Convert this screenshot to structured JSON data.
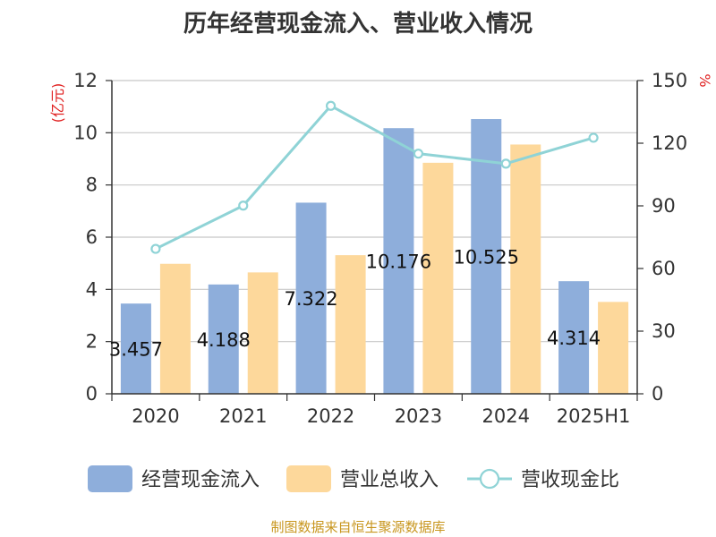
{
  "source": {
    "text": "制图数据来自恒生聚源数据库",
    "color": "#c8961e"
  },
  "chart_data": {
    "type": "bar",
    "title": "历年经营现金流入、营业收入情况",
    "categories": [
      "2020",
      "2021",
      "2022",
      "2023",
      "2024",
      "2025H1"
    ],
    "y_left": {
      "unit": "(亿元)",
      "min": 0,
      "max": 12,
      "ticks": [
        0,
        2,
        4,
        6,
        8,
        10,
        12
      ]
    },
    "y_right": {
      "unit": "%",
      "min": 0,
      "max": 150,
      "ticks": [
        0,
        30,
        60,
        90,
        120,
        150
      ]
    },
    "series": [
      {
        "name": "经营现金流入",
        "type": "bar",
        "axis": "left",
        "color": "#8eaedb",
        "values": [
          3.457,
          4.188,
          7.322,
          10.176,
          10.525,
          4.314
        ],
        "labels": [
          "3.457",
          "4.188",
          "7.322",
          "10.176",
          "10.525",
          "4.314"
        ]
      },
      {
        "name": "营业总收入",
        "type": "bar",
        "axis": "left",
        "color": "#fdd89b",
        "values": [
          4.98,
          4.65,
          5.31,
          8.85,
          9.55,
          3.52
        ]
      },
      {
        "name": "营收现金比",
        "type": "line",
        "axis": "right",
        "color": "#8fd3d6",
        "values": [
          69.4,
          90.1,
          137.9,
          115.0,
          110.2,
          122.6
        ]
      }
    ],
    "grid": true,
    "legend_position": "bottom",
    "unit_color": "#e02020"
  }
}
